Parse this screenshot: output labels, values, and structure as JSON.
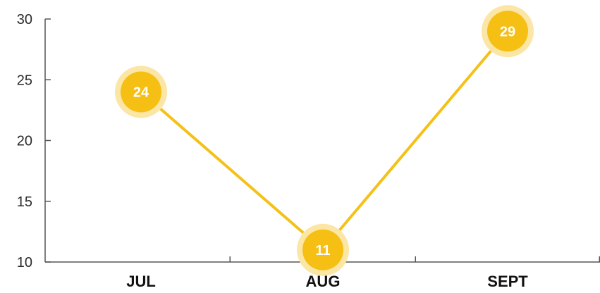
{
  "chart_data": {
    "type": "line",
    "categories": [
      "JUL",
      "AUG",
      "SEPT"
    ],
    "values": [
      24,
      11,
      29
    ],
    "data_labels": [
      "24",
      "11",
      "29"
    ],
    "ylim": [
      10,
      30
    ],
    "yticks": [
      "10",
      "15",
      "20",
      "25",
      "30"
    ],
    "title": "",
    "xlabel": "",
    "ylabel": "",
    "grid": false,
    "colors": {
      "line": "#f4c118",
      "marker": "#f5bf14",
      "halo": "#fbe6a6",
      "axis": "#555555"
    }
  }
}
